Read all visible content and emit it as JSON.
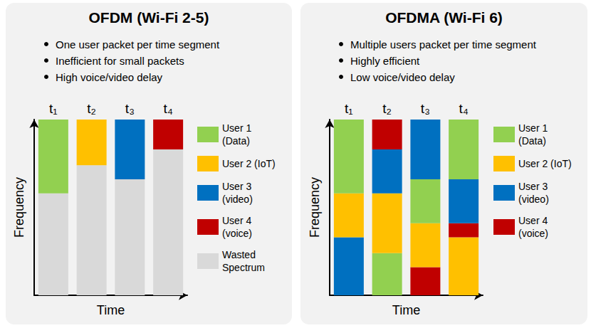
{
  "chart_data": [
    {
      "type": "bar",
      "stacked": true,
      "title": "OFDM (Wi-Fi 2-5)",
      "annotations": [
        "One user packet per time segment",
        "Inefficient for small packets",
        "High voice/video delay"
      ],
      "x_label": "Time",
      "y_label": "Frequency",
      "categories": [
        "t₁",
        "t₂",
        "t₃",
        "t₄"
      ],
      "series": [
        {
          "name": "User 1 (Data)",
          "color": "#92d050"
        },
        {
          "name": "User 2 (IoT)",
          "color": "#ffc000"
        },
        {
          "name": "User 3 (video)",
          "color": "#0070c0"
        },
        {
          "name": "User 4 (voice)",
          "color": "#c00000"
        },
        {
          "name": "Wasted Spectrum",
          "color": "#d9d9d9"
        }
      ],
      "segments": [
        [
          {
            "series": "Wasted Spectrum",
            "value": 58
          },
          {
            "series": "User 1 (Data)",
            "value": 42
          }
        ],
        [
          {
            "series": "Wasted Spectrum",
            "value": 74
          },
          {
            "series": "User 2 (IoT)",
            "value": 26
          }
        ],
        [
          {
            "series": "Wasted Spectrum",
            "value": 66
          },
          {
            "series": "User 3 (video)",
            "value": 34
          }
        ],
        [
          {
            "series": "Wasted Spectrum",
            "value": 83
          },
          {
            "series": "User 4 (voice)",
            "value": 17
          }
        ]
      ],
      "ylim": [
        0,
        100
      ],
      "tick_labels": "x",
      "legend": "right"
    },
    {
      "type": "bar",
      "stacked": true,
      "title": "OFDMA (Wi-Fi 6)",
      "annotations": [
        "Multiple users packet per time segment",
        "Highly efficient",
        "Low voice/video delay"
      ],
      "x_label": "Time",
      "y_label": "Frequency",
      "categories": [
        "t₁",
        "t₂",
        "t₃",
        "t₄"
      ],
      "series": [
        {
          "name": "User 1 (Data)",
          "color": "#92d050"
        },
        {
          "name": "User 2 (IoT)",
          "color": "#ffc000"
        },
        {
          "name": "User 3 (video)",
          "color": "#0070c0"
        },
        {
          "name": "User 4 (voice)",
          "color": "#c00000"
        }
      ],
      "segments": [
        [
          {
            "series": "User 3 (video)",
            "value": 33
          },
          {
            "series": "User 2 (IoT)",
            "value": 25
          },
          {
            "series": "User 1 (Data)",
            "value": 42
          }
        ],
        [
          {
            "series": "User 1 (Data)",
            "value": 24
          },
          {
            "series": "User 2 (IoT)",
            "value": 34
          },
          {
            "series": "User 3 (video)",
            "value": 25
          },
          {
            "series": "User 4 (voice)",
            "value": 17
          }
        ],
        [
          {
            "series": "User 4 (voice)",
            "value": 16
          },
          {
            "series": "User 2 (IoT)",
            "value": 25
          },
          {
            "series": "User 1 (Data)",
            "value": 25
          },
          {
            "series": "User 3 (video)",
            "value": 34
          }
        ],
        [
          {
            "series": "User 2 (IoT)",
            "value": 33
          },
          {
            "series": "User 4 (voice)",
            "value": 8
          },
          {
            "series": "User 3 (video)",
            "value": 25
          },
          {
            "series": "User 1 (Data)",
            "value": 34
          }
        ]
      ],
      "ylim": [
        0,
        100
      ],
      "tick_labels": "x",
      "legend": "right"
    }
  ]
}
